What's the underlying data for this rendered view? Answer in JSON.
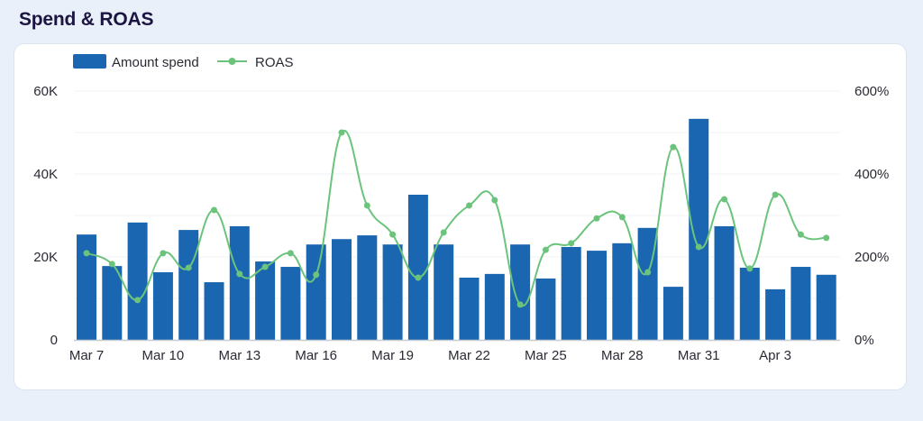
{
  "title": "Spend & ROAS",
  "legend": {
    "bar_label": "Amount spend",
    "line_label": "ROAS"
  },
  "colors": {
    "bar": "#1a66b0",
    "line": "#6cc47c",
    "title": "#1c1541",
    "background": "#e9f0f9",
    "card": "#ffffff",
    "grid": "#f1f3f6"
  },
  "axes": {
    "left_ticks": [
      "0",
      "20K",
      "40K",
      "60K"
    ],
    "right_ticks": [
      "0%",
      "200%",
      "400%",
      "600%"
    ],
    "x_ticks": [
      "Mar 7",
      "Mar 10",
      "Mar 13",
      "Mar 16",
      "Mar 19",
      "Mar 22",
      "Mar 25",
      "Mar 28",
      "Mar 31",
      "Apr 3"
    ]
  },
  "chart_data": {
    "type": "bar",
    "title": "Spend & ROAS",
    "xlabel": "",
    "ylabel": "Amount spend",
    "y2label": "ROAS",
    "ylim": [
      0,
      60000
    ],
    "y2lim": [
      0,
      600
    ],
    "grid": true,
    "legend_position": "top-left",
    "categories": [
      "Mar 7",
      "Mar 8",
      "Mar 9",
      "Mar 10",
      "Mar 11",
      "Mar 12",
      "Mar 13",
      "Mar 14",
      "Mar 15",
      "Mar 16",
      "Mar 17",
      "Mar 18",
      "Mar 19",
      "Mar 20",
      "Mar 21",
      "Mar 22",
      "Mar 23",
      "Mar 24",
      "Mar 25",
      "Mar 26",
      "Mar 27",
      "Mar 28",
      "Mar 29",
      "Mar 30",
      "Mar 31",
      "Apr 1",
      "Apr 2",
      "Apr 3",
      "Apr 4",
      "Apr 5"
    ],
    "series": [
      {
        "name": "Amount spend",
        "type": "bar",
        "axis": "left",
        "values": [
          25400,
          17800,
          28300,
          16300,
          26500,
          13900,
          27400,
          18900,
          17600,
          23000,
          24300,
          25200,
          23000,
          35000,
          23000,
          15000,
          15900,
          23000,
          14800,
          22400,
          21500,
          23300,
          27000,
          12800,
          53300,
          27400,
          17400,
          12200,
          17600,
          15700
        ]
      },
      {
        "name": "ROAS",
        "type": "line",
        "axis": "right",
        "unit": "%",
        "values": [
          209,
          183,
          96,
          209,
          174,
          313,
          159,
          176,
          209,
          157,
          500,
          324,
          254,
          150,
          259,
          324,
          337,
          85,
          217,
          233,
          293,
          296,
          163,
          465,
          224,
          339,
          172,
          350,
          254,
          246
        ]
      }
    ]
  }
}
